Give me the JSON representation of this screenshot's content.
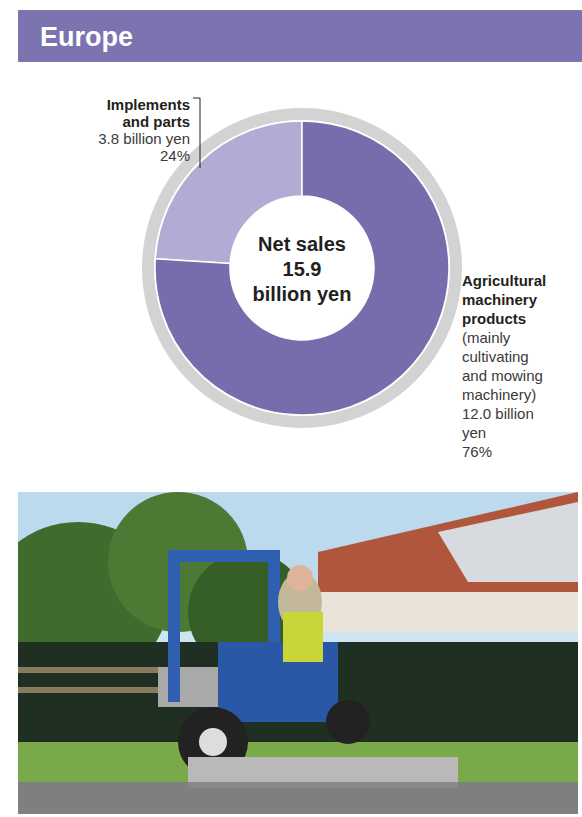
{
  "chart_data": {
    "type": "donut",
    "title": "Europe",
    "center_label": {
      "title": "Net sales",
      "value": 15.9,
      "unit": "billion yen"
    },
    "categories": [
      "Implements and parts",
      "Agricultural machinery products"
    ],
    "descriptions": [
      null,
      "(mainly cultivating and mowing machinery)"
    ],
    "amount_labels": [
      "3.8 billion yen",
      "12.0 billion yen"
    ],
    "values": [
      24,
      76
    ],
    "value_labels": [
      "24%",
      "76%"
    ],
    "colors": [
      "#b2abd3",
      "#766dac"
    ],
    "data_labels": true,
    "legend": false
  }
}
